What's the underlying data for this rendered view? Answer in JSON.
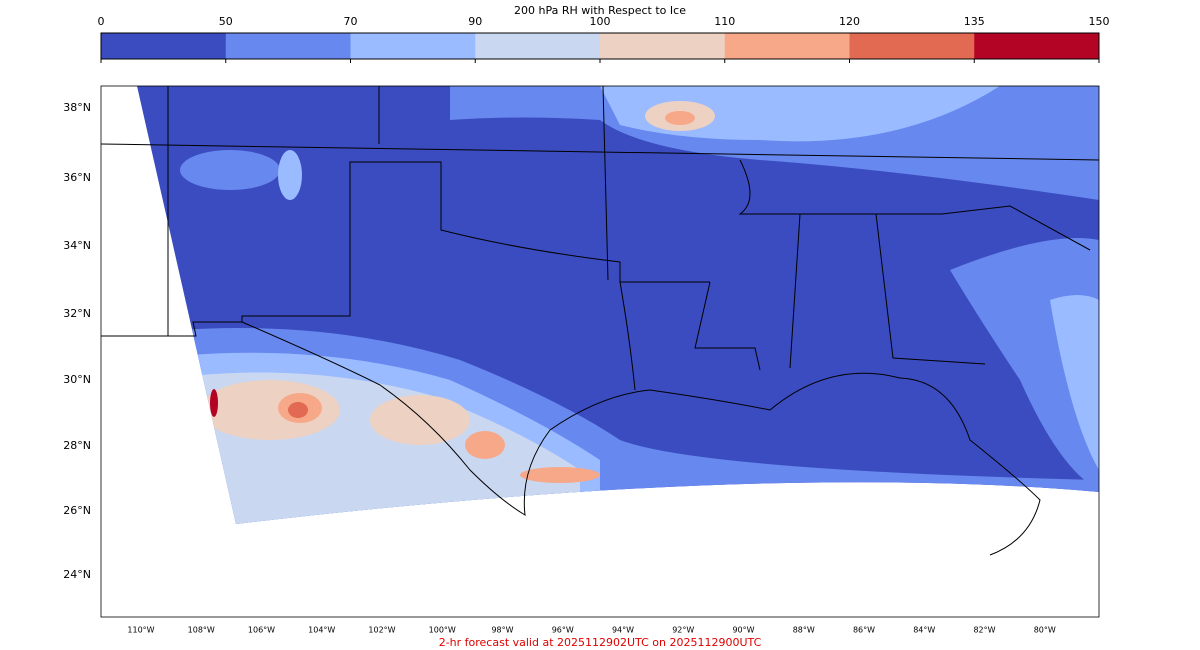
{
  "colorbar": {
    "title": "200 hPa RH with Respect to Ice",
    "ticks": [
      0,
      50,
      70,
      90,
      100,
      110,
      120,
      135,
      150
    ],
    "colors": [
      "#3b4cc0",
      "#6788ee",
      "#9abbff",
      "#c9d7f0",
      "#edd1c2",
      "#f7a889",
      "#e26952",
      "#b40426"
    ]
  },
  "map": {
    "lat_labels": [
      "38°N",
      "36°N",
      "34°N",
      "32°N",
      "30°N",
      "28°N",
      "26°N",
      "24°N"
    ],
    "lon_labels": [
      "110°W",
      "108°W",
      "106°W",
      "104°W",
      "102°W",
      "100°W",
      "98°W",
      "96°W",
      "94°W",
      "92°W",
      "90°W",
      "88°W",
      "86°W",
      "84°W",
      "82°W",
      "80°W"
    ]
  },
  "footer": "2-hr forecast valid at 2025112902UTC on 2025112900UTC"
}
